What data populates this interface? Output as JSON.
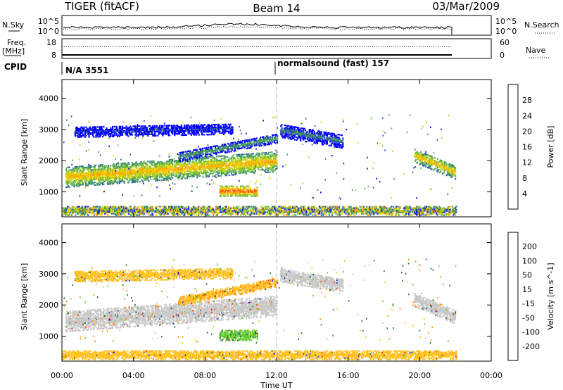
{
  "header": {
    "radar": "TIGER (fitACF)",
    "beam": "Beam 14",
    "date": "03/Mar/2009"
  },
  "strips": {
    "nsky_label": "N.Sky",
    "nsky_ticks": [
      "10^5",
      "10^0"
    ],
    "nsearch_label": "N.Search",
    "nsearch_ticks": [
      "10^5",
      "10^0"
    ],
    "freq_label_1": "Freq.",
    "freq_label_2": "[MHz]",
    "freq_ticks": [
      "18",
      "8"
    ],
    "nave_label": "Nave",
    "nave_ticks": [
      "60",
      "0"
    ],
    "cpid_label": "CPID",
    "cpid_left": "N/A 3551",
    "cpid_right": "normalsound (fast) 157"
  },
  "colors": {
    "power": [
      "#0000ff",
      "#2d4fb0",
      "#3c8c6e",
      "#52ad52",
      "#a8cc20",
      "#f0cf00",
      "#ff9900",
      "#ff5500",
      "#e60000"
    ],
    "velocity": [
      "#0000cc",
      "#3050c0",
      "#207030",
      "#66cc33",
      "#c8c8c8",
      "#ffc020",
      "#ff8800",
      "#ff4400",
      "#e00000"
    ]
  },
  "chart_data": [
    {
      "type": "heatmap",
      "title": "Power",
      "xlabel": "Time UT",
      "ylabel": "Slant Range [km]",
      "x_ticks": [
        "00:00",
        "04:00",
        "08:00",
        "12:00",
        "16:00",
        "20:00",
        "00:00"
      ],
      "xlim": [
        0,
        24
      ],
      "y_ticks": [
        1000,
        2000,
        3000,
        4000
      ],
      "ylim": [
        200,
        4600
      ],
      "data_end_hour": 22,
      "marker_hour": 12,
      "colorbar": {
        "label": "Power [dB]",
        "ticks": [
          4,
          8,
          12,
          16,
          20,
          24,
          28
        ],
        "range": [
          0,
          32
        ]
      },
      "regions": [
        {
          "name": "main-band",
          "t0": 0.2,
          "t1": 12,
          "r_start": 1450,
          "r_end": 1950,
          "width": 650,
          "value": 22
        },
        {
          "name": "upper-band",
          "t0": 0.7,
          "t1": 9.5,
          "r_start": 2900,
          "r_end": 3000,
          "width": 350,
          "value": 5
        },
        {
          "name": "rising-band",
          "t0": 6.5,
          "t1": 12,
          "r_start": 2100,
          "r_end": 2700,
          "width": 300,
          "value": 12
        },
        {
          "name": "patch-10h",
          "t0": 8.8,
          "t1": 10.9,
          "r_start": 1000,
          "r_end": 1000,
          "width": 320,
          "value": 27
        },
        {
          "name": "patch-13h",
          "t0": 12.2,
          "t1": 15.7,
          "r_start": 2950,
          "r_end": 2600,
          "width": 450,
          "value": 9
        },
        {
          "name": "patch-21h",
          "t0": 19.7,
          "t1": 22,
          "r_start": 2150,
          "r_end": 1600,
          "width": 450,
          "value": 21
        },
        {
          "name": "near-range",
          "t0": 0,
          "t1": 22,
          "r_start": 380,
          "r_end": 380,
          "width": 300,
          "value": 6
        }
      ]
    },
    {
      "type": "heatmap",
      "title": "Velocity",
      "xlabel": "Time UT",
      "ylabel": "Slant Range [km]",
      "x_ticks": [
        "00:00",
        "04:00",
        "08:00",
        "12:00",
        "16:00",
        "20:00",
        "00:00"
      ],
      "xlim": [
        0,
        24
      ],
      "y_ticks": [
        1000,
        2000,
        3000,
        4000
      ],
      "ylim": [
        200,
        4600
      ],
      "data_end_hour": 22,
      "marker_hour": 12,
      "colorbar": {
        "label": "Velocity [m s^-1]",
        "ticks": [
          200,
          100,
          50,
          15,
          -15,
          -50,
          -100,
          -200
        ]
      },
      "regions": [
        {
          "name": "main-band",
          "t0": 0.2,
          "t1": 12,
          "r_start": 1450,
          "r_end": 1950,
          "width": 650,
          "value": 0
        },
        {
          "name": "upper-band",
          "t0": 0.7,
          "t1": 9.5,
          "r_start": 2900,
          "r_end": 3000,
          "width": 350,
          "value": -30
        },
        {
          "name": "rising-band",
          "t0": 6.5,
          "t1": 12,
          "r_start": 2100,
          "r_end": 2700,
          "width": 300,
          "value": -40
        },
        {
          "name": "patch-10h",
          "t0": 8.8,
          "t1": 10.9,
          "r_start": 1000,
          "r_end": 1000,
          "width": 320,
          "value": 40
        },
        {
          "name": "patch-13h",
          "t0": 12.2,
          "t1": 15.7,
          "r_start": 2950,
          "r_end": 2600,
          "width": 450,
          "value": 0
        },
        {
          "name": "patch-21h",
          "t0": 19.7,
          "t1": 22,
          "r_start": 2150,
          "r_end": 1600,
          "width": 450,
          "value": 0
        },
        {
          "name": "near-range",
          "t0": 0,
          "t1": 22,
          "r_start": 380,
          "r_end": 380,
          "width": 300,
          "value": -30
        }
      ]
    }
  ]
}
